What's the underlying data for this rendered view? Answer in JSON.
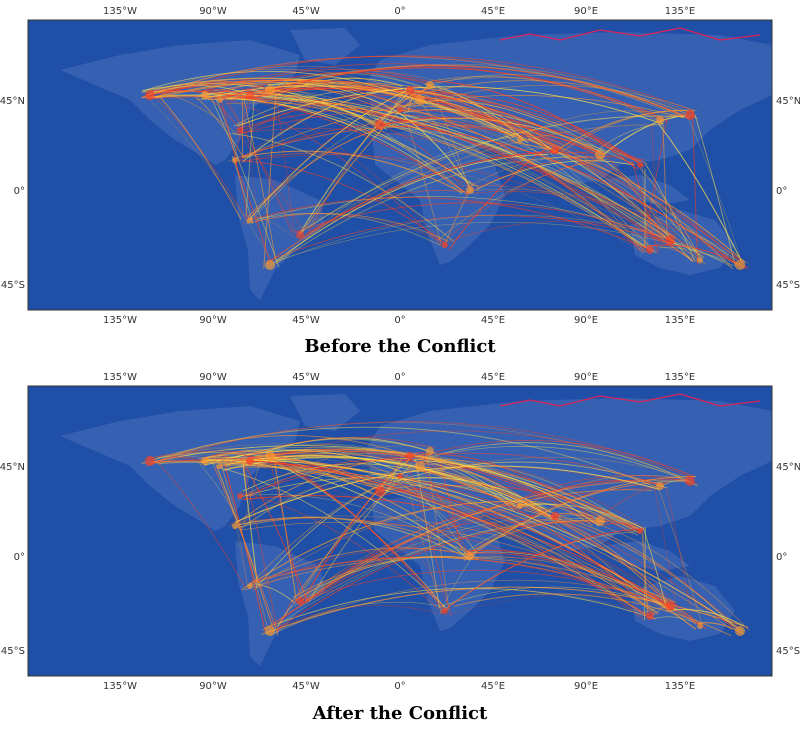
{
  "panels": [
    {
      "caption": "Before the Conflict",
      "x_ticks": [
        "135°W",
        "90°W",
        "45°W",
        "0°",
        "45°E",
        "90°E",
        "135°E"
      ],
      "y_ticks": [
        "45°N",
        "0°",
        "45°S"
      ]
    },
    {
      "caption": "After the Conflict",
      "x_ticks": [
        "135°W",
        "90°W",
        "45°W",
        "0°",
        "45°E",
        "90°E",
        "135°E"
      ],
      "y_ticks": [
        "45°N",
        "0°",
        "45°S"
      ]
    }
  ],
  "map": {
    "projection": "plate-carree",
    "ocean_color": "#1f4fa6",
    "land_color": "#3f67b6",
    "route_colors": [
      "#ffe24a",
      "#ff9a2e",
      "#ff3d1f"
    ],
    "russia_border_color": "#e0225a"
  }
}
